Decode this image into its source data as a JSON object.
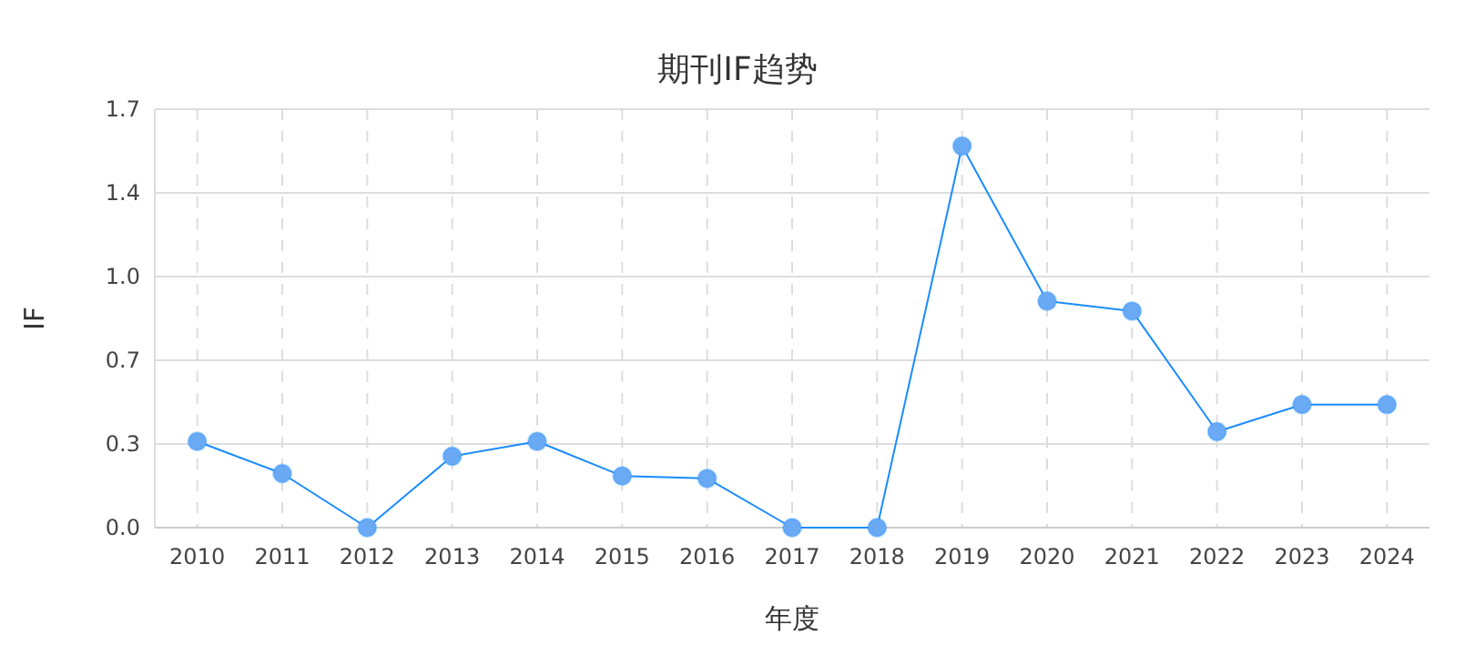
{
  "chart_data": {
    "type": "line",
    "title": "期刊IF趋势",
    "xlabel": "年度",
    "ylabel": "IF",
    "categories": [
      "2010",
      "2011",
      "2012",
      "2013",
      "2014",
      "2015",
      "2016",
      "2017",
      "2018",
      "2019",
      "2020",
      "2021",
      "2022",
      "2023",
      "2024"
    ],
    "series": [
      {
        "color": "#1a8cff",
        "values": [
          0.35,
          0.22,
          0,
          0.29,
          0.35,
          0.21,
          0.2,
          0,
          0,
          1.55,
          0.92,
          0.88,
          0.39,
          0.5,
          0.5
        ]
      }
    ],
    "ylim": [
      0,
      1.7
    ],
    "yticks": [
      {
        "value": 0,
        "label": "0.0"
      },
      {
        "value": 0.34,
        "label": "0.3"
      },
      {
        "value": 0.68,
        "label": "0.7"
      },
      {
        "value": 1.02,
        "label": "1.0"
      },
      {
        "value": 1.36,
        "label": "1.4"
      },
      {
        "value": 1.7,
        "label": "1.7"
      }
    ],
    "grid": true,
    "marker": "circle",
    "line_style": "solid"
  }
}
